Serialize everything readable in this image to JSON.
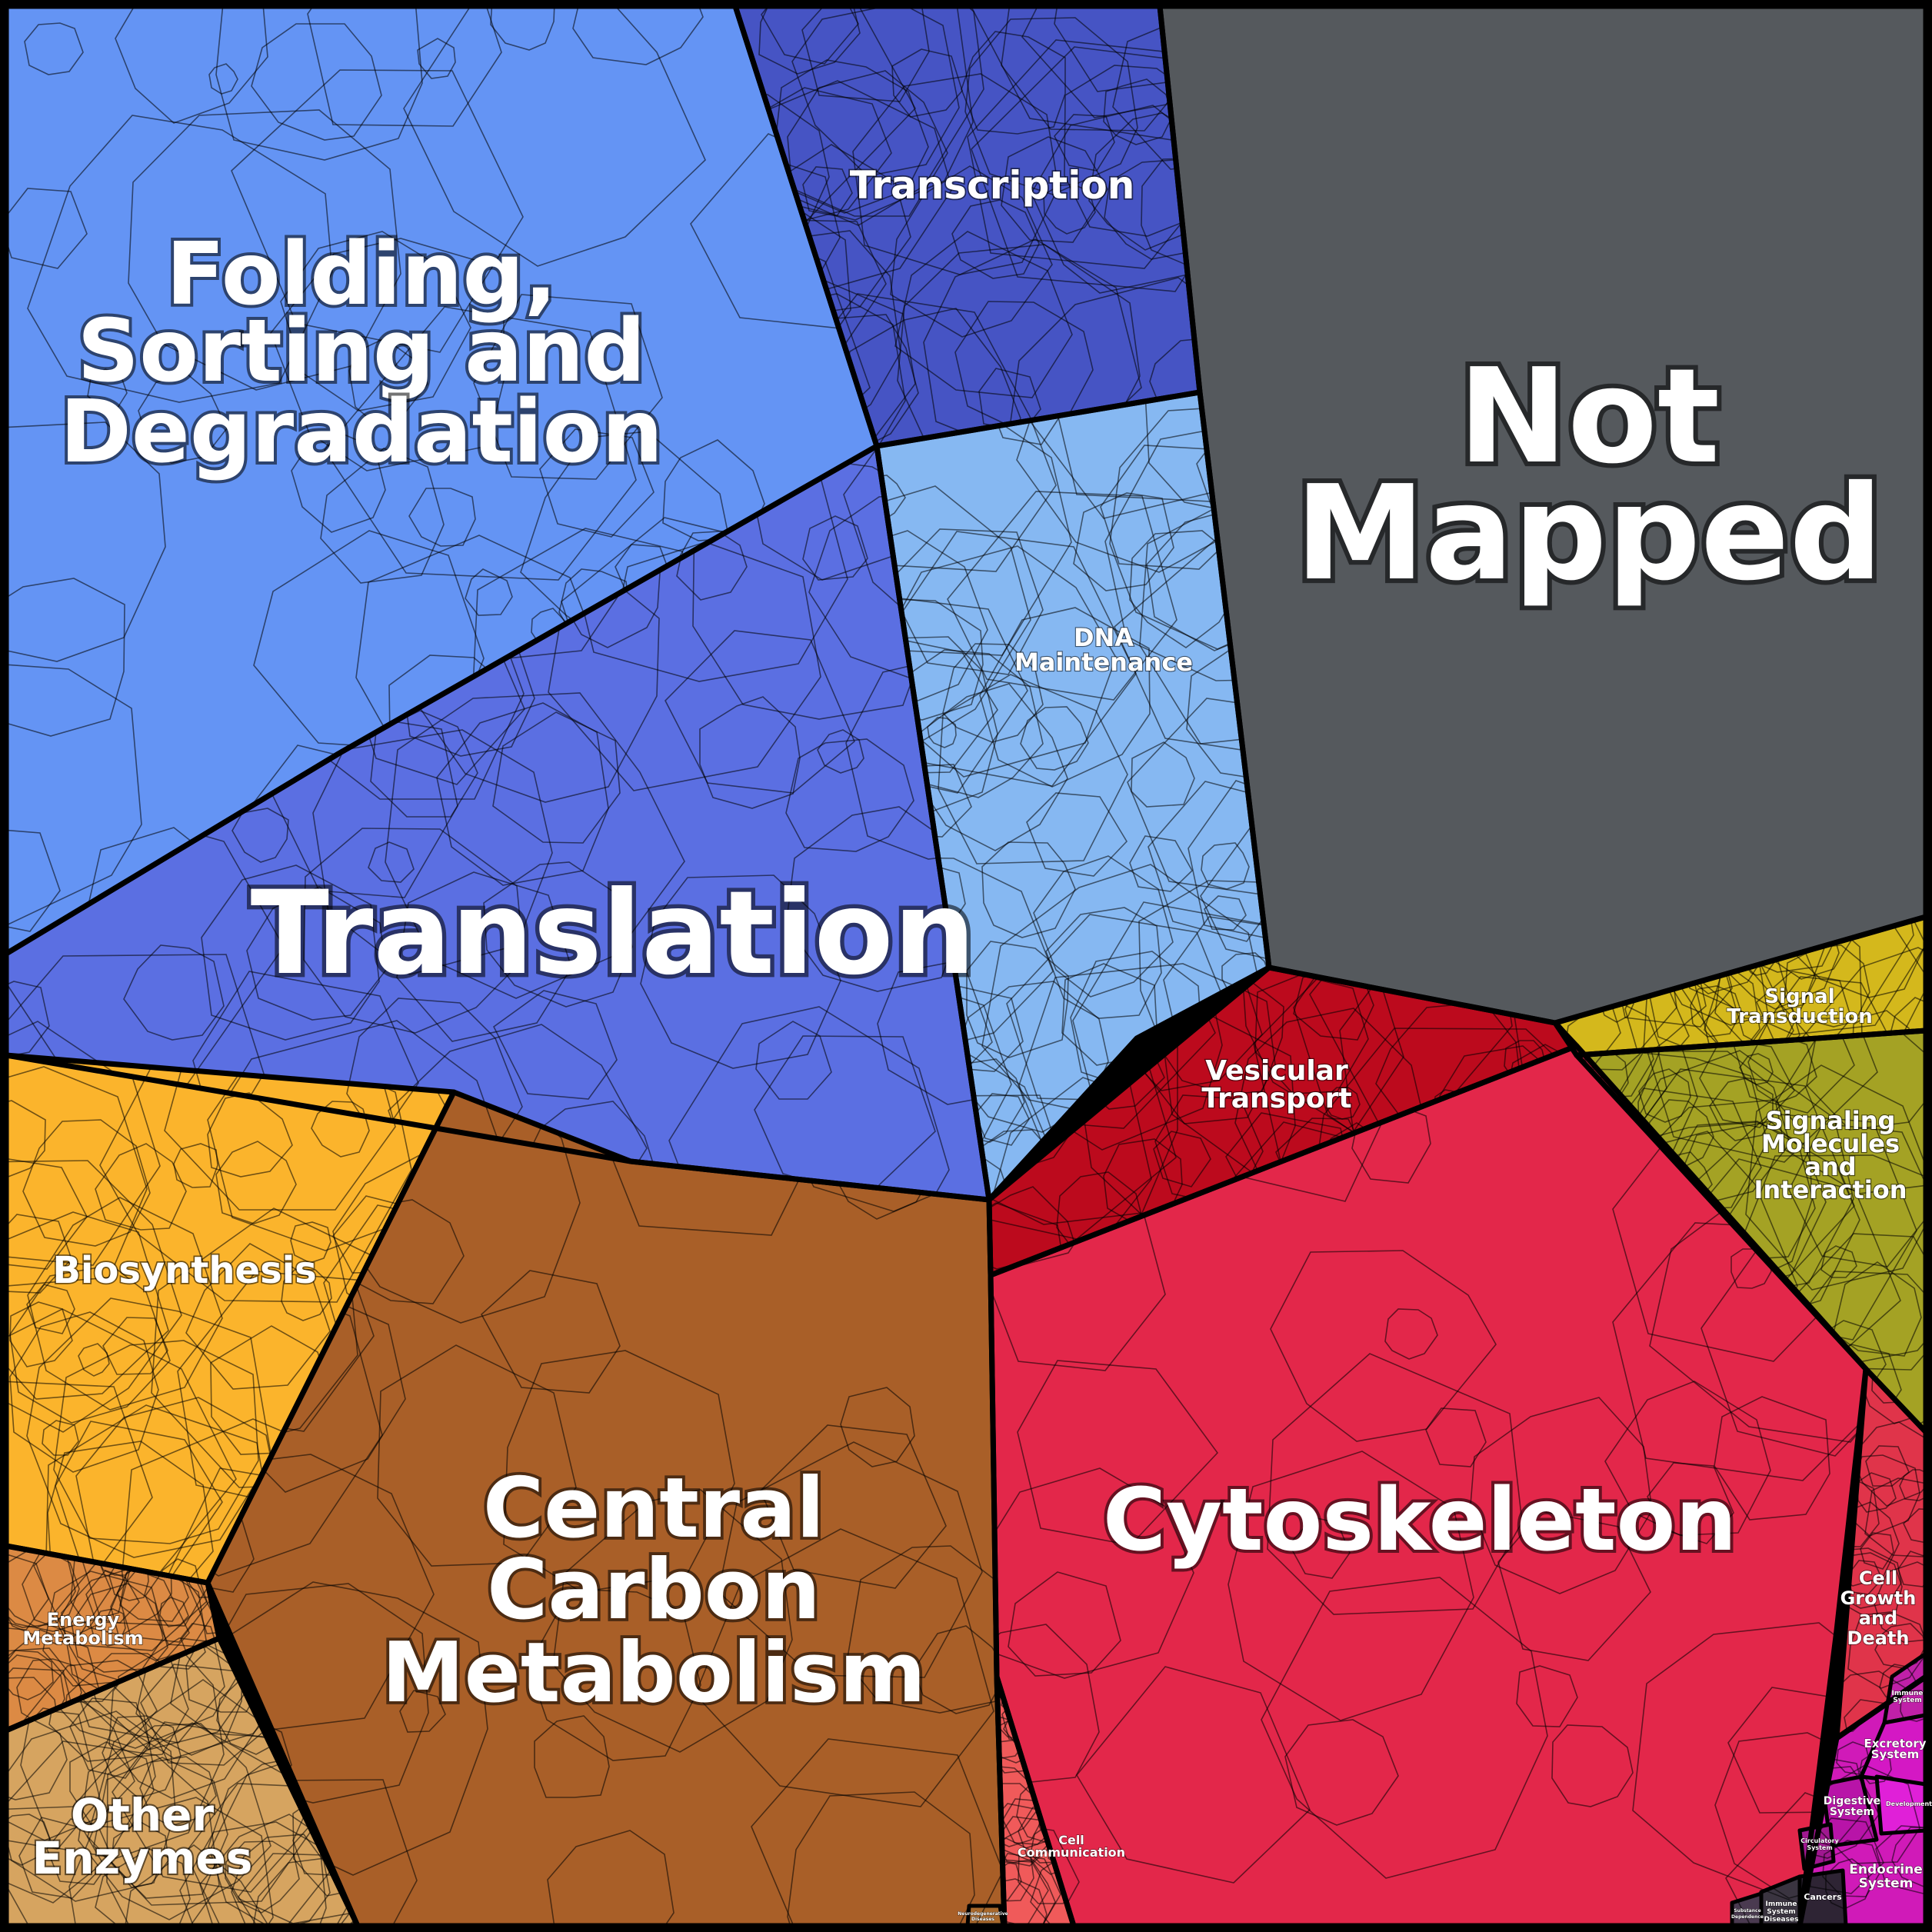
{
  "map": {
    "categories": [
      {
        "key": "folding",
        "label_lines": [
          "Folding,",
          "Sorting and",
          "Degradation"
        ],
        "color": "#6494f4"
      },
      {
        "key": "transcription",
        "label_lines": [
          "Transcription"
        ],
        "color": "#4654c4"
      },
      {
        "key": "not_mapped",
        "label_lines": [
          "Not",
          "Mapped"
        ],
        "color": "#55595d"
      },
      {
        "key": "dna",
        "label_lines": [
          "DNA",
          "Maintenance"
        ],
        "color": "#86b8f2"
      },
      {
        "key": "translation",
        "label_lines": [
          "Translation"
        ],
        "color": "#5b6fe2"
      },
      {
        "key": "vesicular",
        "label_lines": [
          "Vesicular",
          "Transport"
        ],
        "color": "#bc0a1d"
      },
      {
        "key": "signal_transduction",
        "label_lines": [
          "Signal",
          "Transduction"
        ],
        "color": "#d4b81c"
      },
      {
        "key": "signaling_molecules",
        "label_lines": [
          "Signaling",
          "Molecules",
          "and",
          "Interaction"
        ],
        "color": "#a4a224"
      },
      {
        "key": "biosynthesis",
        "label_lines": [
          "Biosynthesis"
        ],
        "color": "#fbb42c"
      },
      {
        "key": "central_carbon",
        "label_lines": [
          "Central",
          "Carbon",
          "Metabolism"
        ],
        "color": "#a95f28"
      },
      {
        "key": "cytoskeleton",
        "label_lines": [
          "Cytoskeleton"
        ],
        "color": "#e3274a"
      },
      {
        "key": "energy",
        "label_lines": [
          "Energy",
          "Metabolism"
        ],
        "color": "#dc8a44"
      },
      {
        "key": "other_enzymes",
        "label_lines": [
          "Other",
          "Enzymes"
        ],
        "color": "#d6a460"
      },
      {
        "key": "cell_growth",
        "label_lines": [
          "Cell",
          "Growth",
          "and",
          "Death"
        ],
        "color": "#e0344a"
      },
      {
        "key": "cell_communication",
        "label_lines": [
          "Cell",
          "Communication"
        ],
        "color": "#f05a5a"
      },
      {
        "key": "immune_system",
        "label_lines": [
          "Immune",
          "System"
        ],
        "color": "#c020a8"
      },
      {
        "key": "excretory_system",
        "label_lines": [
          "Excretory",
          "System"
        ],
        "color": "#d418c4"
      },
      {
        "key": "digestive_system",
        "label_lines": [
          "Digestive",
          "System"
        ],
        "color": "#b814a8"
      },
      {
        "key": "development",
        "label_lines": [
          "Development"
        ],
        "color": "#e020d8"
      },
      {
        "key": "circulatory_system",
        "label_lines": [
          "Circulatory",
          "System"
        ],
        "color": "#a01890"
      },
      {
        "key": "endocrine_system",
        "label_lines": [
          "Endocrine",
          "System"
        ],
        "color": "#d01ab8"
      },
      {
        "key": "cancers",
        "label_lines": [
          "Cancers"
        ],
        "color": "#2e2434"
      },
      {
        "key": "immune_system_diseases",
        "label_lines": [
          "Immune",
          "System",
          "Diseases"
        ],
        "color": "#3a3440"
      },
      {
        "key": "substance_dependence",
        "label_lines": [
          "Substance",
          "Dependence"
        ],
        "color": "#4a3a50"
      },
      {
        "key": "neurodegenerative",
        "label_lines": [
          "Neurodegenerative",
          "Diseases"
        ],
        "color": "#a8682c"
      }
    ]
  }
}
